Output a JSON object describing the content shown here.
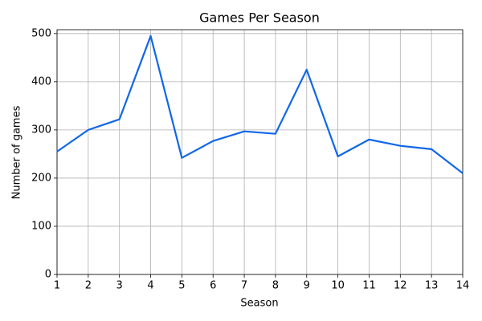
{
  "chart_data": {
    "type": "line",
    "title": "Games Per Season",
    "x_label": "Season",
    "y_label": "Number of games",
    "x": [
      1,
      2,
      3,
      4,
      5,
      6,
      7,
      8,
      9,
      10,
      11,
      12,
      13,
      14
    ],
    "series": [
      {
        "name": "Games",
        "color": "#1067e8",
        "values": [
          255,
          300,
          322,
          495,
          242,
          277,
          297,
          292,
          425,
          245,
          280,
          267,
          260,
          210
        ]
      }
    ],
    "xlim": [
      1,
      14
    ],
    "xticks": [
      1,
      2,
      3,
      4,
      5,
      6,
      7,
      8,
      9,
      10,
      11,
      12,
      13,
      14
    ],
    "ylim": [
      0,
      508
    ],
    "yticks": [
      0,
      100,
      200,
      300,
      400,
      500
    ],
    "grid": true
  }
}
